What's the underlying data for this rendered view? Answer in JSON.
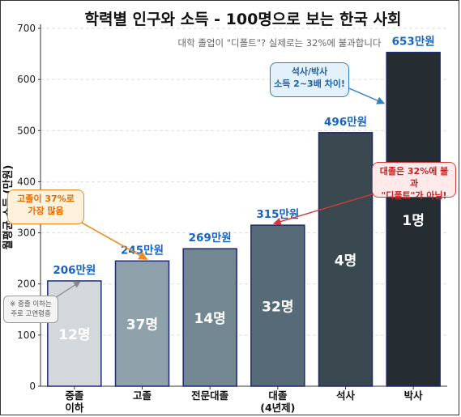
{
  "chart_data": {
    "type": "bar",
    "title": "학력별 인구와 소득 - 100명으로 보는 한국 사회",
    "subtitle": "대학 졸업이 \"디폴트\"? 실제로는 32%에 불과합니다",
    "ylabel": "월평균 소득 (만원)",
    "xlabel": "",
    "ylim": [
      0,
      700
    ],
    "yticks": [
      0,
      100,
      200,
      300,
      400,
      500,
      600,
      700
    ],
    "grid": true,
    "categories": [
      [
        "중졸",
        "이하"
      ],
      [
        "고졸"
      ],
      [
        "전문대졸"
      ],
      [
        "대졸",
        "(4년제)"
      ],
      [
        "석사"
      ],
      [
        "박사"
      ]
    ],
    "values": [
      206,
      245,
      269,
      315,
      496,
      653
    ],
    "value_labels": [
      "206만원",
      "245만원",
      "269만원",
      "315만원",
      "496만원",
      "653만원"
    ],
    "people_labels": [
      "12명",
      "37명",
      "14명",
      "32명",
      "4명",
      "1명"
    ],
    "bar_colors": [
      "#d2d8dc",
      "#8fa1ab",
      "#738792",
      "#566a77",
      "#39494f",
      "#252d33"
    ],
    "bar_edge_color": "#1f2a70",
    "value_label_color": "#1565c0",
    "annotations": [
      {
        "lines": [
          "고졸이 37%로",
          "가장 많음"
        ],
        "style": "orange",
        "points_to": "고졸"
      },
      {
        "lines": [
          "석사/박사",
          "소득 2~3배 차이!"
        ],
        "style": "blue",
        "points_to": "박사"
      },
      {
        "lines": [
          "대졸은 32%에 불과",
          "\"디폴트\"가 아님!"
        ],
        "style": "red",
        "points_to": "대졸"
      },
      {
        "lines": [
          "※ 중졸 이하는",
          "주로 고연령층"
        ],
        "style": "gray",
        "points_to": "중졸 이하"
      }
    ]
  },
  "colors": {
    "orange": "#f08a1c",
    "blue": "#2f7fc4",
    "red": "#d33a3a",
    "gray": "#888888",
    "grid": "#dddddd",
    "axis": "#333333"
  }
}
